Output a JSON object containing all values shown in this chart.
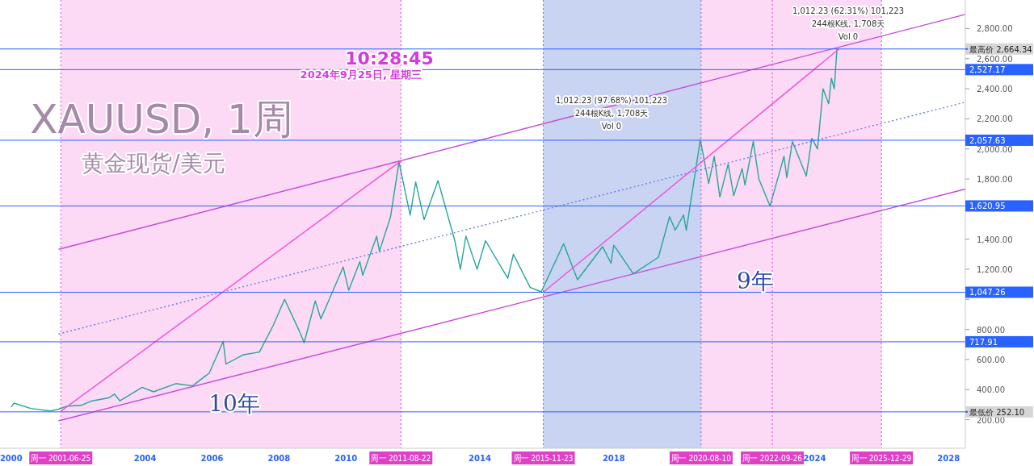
{
  "chart_data": {
    "type": "line",
    "title": "XAUUSD, 1周",
    "subtitle": "黄金现货/美元",
    "xlim": [
      "1999-09",
      "2028-07"
    ],
    "ylim": [
      10,
      2990
    ],
    "xticks": [
      "2000",
      "2004",
      "2006",
      "2008",
      "2010",
      "2014",
      "2018",
      "2024",
      "2028"
    ],
    "yticks": [
      {
        "value": 200,
        "label": "200.00"
      },
      {
        "value": 400,
        "label": "400.00"
      },
      {
        "value": 600,
        "label": "600.00"
      },
      {
        "value": 800,
        "label": "800.00"
      },
      {
        "value": 1000,
        "label": null
      },
      {
        "value": 1200,
        "label": "1,200.00"
      },
      {
        "value": 1400,
        "label": "1,400.00"
      },
      {
        "value": 1600,
        "label": null
      },
      {
        "value": 1800,
        "label": "1,800.00"
      },
      {
        "value": 2000,
        "label": "2,000.00"
      },
      {
        "value": 2200,
        "label": "2,200.00"
      },
      {
        "value": 2400,
        "label": "2,400.00"
      },
      {
        "value": 2600,
        "label": "2,600.00"
      },
      {
        "value": 2800,
        "label": "2,800.00"
      }
    ],
    "x": [
      "2000-01",
      "2000-02",
      "2000-08",
      "2001-03",
      "2001-06",
      "2001-09",
      "2002-02",
      "2002-06",
      "2002-12",
      "2003-02",
      "2003-04",
      "2003-12",
      "2004-04",
      "2004-12",
      "2005-06",
      "2005-12",
      "2006-05",
      "2006-06",
      "2006-12",
      "2007-06",
      "2007-11",
      "2008-03",
      "2008-08",
      "2008-10",
      "2009-02",
      "2009-04",
      "2009-12",
      "2010-02",
      "2010-06",
      "2010-07",
      "2010-12",
      "2011-01",
      "2011-05",
      "2011-08",
      "2011-12",
      "2012-02",
      "2012-05",
      "2012-10",
      "2013-04",
      "2013-06",
      "2013-08",
      "2013-12",
      "2014-03",
      "2014-11",
      "2015-01",
      "2015-07",
      "2015-11",
      "2016-07",
      "2016-12",
      "2017-09",
      "2017-12",
      "2018-01",
      "2018-08",
      "2019-05",
      "2019-09",
      "2019-11",
      "2020-02",
      "2020-03",
      "2020-08",
      "2020-11",
      "2021-01",
      "2021-03",
      "2021-06",
      "2021-08",
      "2021-11",
      "2021-12",
      "2022-03",
      "2022-05",
      "2022-09",
      "2023-02",
      "2023-03",
      "2023-05",
      "2023-10",
      "2023-12",
      "2024-02",
      "2024-04",
      "2024-06",
      "2024-07",
      "2024-08",
      "2024-09"
    ],
    "series": [
      {
        "color": "#26a69a",
        "values": [
          285,
          310,
          275,
          258,
          270,
          290,
          295,
          325,
          345,
          370,
          325,
          415,
          385,
          440,
          425,
          510,
          720,
          570,
          630,
          650,
          830,
          1000,
          800,
          712,
          990,
          870,
          1215,
          1060,
          1250,
          1160,
          1420,
          1320,
          1550,
          1913,
          1560,
          1780,
          1530,
          1790,
          1390,
          1200,
          1420,
          1200,
          1390,
          1140,
          1300,
          1080,
          1050,
          1370,
          1130,
          1350,
          1240,
          1360,
          1170,
          1280,
          1550,
          1460,
          1560,
          1460,
          2060,
          1770,
          1950,
          1680,
          1900,
          1690,
          1870,
          1760,
          2050,
          1800,
          1620,
          1950,
          1810,
          2050,
          1820,
          2070,
          2000,
          2400,
          2300,
          2470,
          2400,
          2664
        ]
      },
      {
        "type": "line",
        "color": "#c64bd6",
        "line_style": "solid",
        "x": [
          "2001-06",
          "2028-07"
        ],
        "values": [
          1332,
          2894
        ]
      },
      {
        "type": "line",
        "color": "#6a7fe0",
        "line_style": "dotted",
        "x": [
          "2001-06",
          "2028-07"
        ],
        "values": [
          770,
          2311
        ]
      },
      {
        "type": "line",
        "color": "#c64bd6",
        "line_style": "solid",
        "x": [
          "2001-06",
          "2028-07"
        ],
        "values": [
          192,
          1733
        ]
      },
      {
        "type": "line",
        "color": "#f050d8",
        "line_style": "solid",
        "x": [
          "2001-06-25",
          "2011-08-22"
        ],
        "values": [
          256,
          1920
        ]
      },
      {
        "type": "line",
        "color": "#f050d8",
        "line_style": "solid",
        "x": [
          "2015-11-23",
          "2024-09-23"
        ],
        "values": [
          1047,
          2664
        ]
      }
    ],
    "bands": [
      {
        "axis": "x",
        "from": "2001-06-25",
        "to": "2011-08-22",
        "color": "#fcd9f4"
      },
      {
        "axis": "x",
        "from": "2015-11-23",
        "to": "2020-08-10",
        "color": "#c9d3f2"
      },
      {
        "axis": "x",
        "from": "2020-08-10",
        "to": "2025-12-29",
        "color": "#fcd9f4"
      }
    ],
    "ref_lines": [
      {
        "axis": "y",
        "value": 252.1,
        "label": "最低价 252.10",
        "color": "#2962ff"
      },
      {
        "axis": "y",
        "value": 717.91,
        "label": "717.91",
        "color": "#2962ff"
      },
      {
        "axis": "y",
        "value": 1047.26,
        "label": "1,047.26",
        "color": "#2962ff"
      },
      {
        "axis": "y",
        "value": 1620.95,
        "label": "1,620.95",
        "color": "#2962ff"
      },
      {
        "axis": "y",
        "value": 2057.63,
        "label": "2,057.63",
        "color": "#2962ff"
      },
      {
        "axis": "y",
        "value": 2527.17,
        "label": "2,527.17",
        "color": "#2962ff"
      },
      {
        "axis": "y",
        "value": 2664.34,
        "label": "最高价 2,664.34",
        "color": "#2962ff"
      },
      {
        "axis": "x",
        "value": "2001-06-25",
        "label": "周一 2001-06-25",
        "color": "#c64bd6",
        "line_style": "dotted"
      },
      {
        "axis": "x",
        "value": "2011-08-22",
        "label": "周一 2011-08-22",
        "color": "#c64bd6",
        "line_style": "dotted"
      },
      {
        "axis": "x",
        "value": "2015-11-23",
        "label": "周一 2015-11-23",
        "color": "#c64bd6",
        "line_style": "dotted"
      },
      {
        "axis": "x",
        "value": "2020-08-10",
        "label": "周一 2020-08-10",
        "color": "#c64bd6",
        "line_style": "dotted"
      },
      {
        "axis": "x",
        "value": "2022-09-26",
        "label": "周一 2022-09-26",
        "color": "#c64bd6",
        "line_style": "dotted"
      },
      {
        "axis": "x",
        "value": "2025-12-29",
        "label": "周一 2025-12-29",
        "color": "#c64bd6",
        "line_style": "dotted"
      }
    ],
    "annotations": [
      "10:28:45",
      "2024年9月25日, 星期三",
      "10年",
      "9年",
      "1,012.23 (97.68%) 101,223",
      "244根K线, 1,708天",
      "Vol 0",
      "1,012.23 (62.31%) 101,223",
      "244根K线, 1,708天",
      "Vol 0"
    ]
  }
}
